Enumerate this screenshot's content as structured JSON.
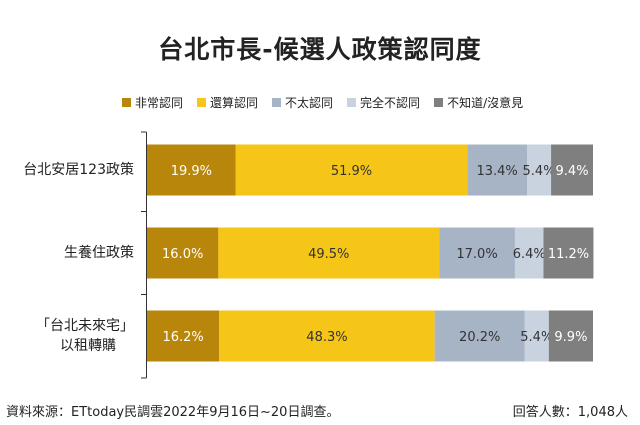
{
  "chart_data": {
    "type": "bar",
    "orientation": "horizontal",
    "stacked": true,
    "title": "台北市長-候選人政策認同度",
    "categories": [
      "台北安居123政策",
      "生養住政策",
      "「台北未來宅」以租轉購"
    ],
    "category_lines": [
      [
        "台北安居123政策"
      ],
      [
        "生養住政策"
      ],
      [
        "「台北未來宅」",
        "以租轉購"
      ]
    ],
    "series": [
      {
        "name": "非常認同",
        "color": "#B8860B",
        "values": [
          19.9,
          16.0,
          16.2
        ],
        "labels": [
          "19.9%",
          "16.0%",
          "16.2%"
        ]
      },
      {
        "name": "還算認同",
        "color": "#F5C518",
        "values": [
          51.9,
          49.5,
          48.3
        ],
        "labels": [
          "51.9%",
          "49.5%",
          "48.3%"
        ]
      },
      {
        "name": "不太認同",
        "color": "#A6B4C6",
        "values": [
          13.4,
          17.0,
          20.2
        ],
        "labels": [
          "13.4%",
          "17.0%",
          "20.2%"
        ]
      },
      {
        "name": "完全不認同",
        "color": "#C9D3E0",
        "values": [
          5.4,
          6.4,
          5.4
        ],
        "labels": [
          "5.4%",
          "6.4%",
          "5.4%"
        ]
      },
      {
        "name": "不知道/沒意見",
        "color": "#7F7F7F",
        "values": [
          9.4,
          11.2,
          9.9
        ],
        "labels": [
          "9.4%",
          "11.2%",
          "9.9%"
        ]
      }
    ],
    "xlim": [
      0,
      100
    ],
    "legend": "top",
    "grid": false
  },
  "footer": {
    "source": "資料來源：ETtoday民調雲2022年9月16日~20日調查。",
    "respondents": "回答人數：1,048人"
  }
}
